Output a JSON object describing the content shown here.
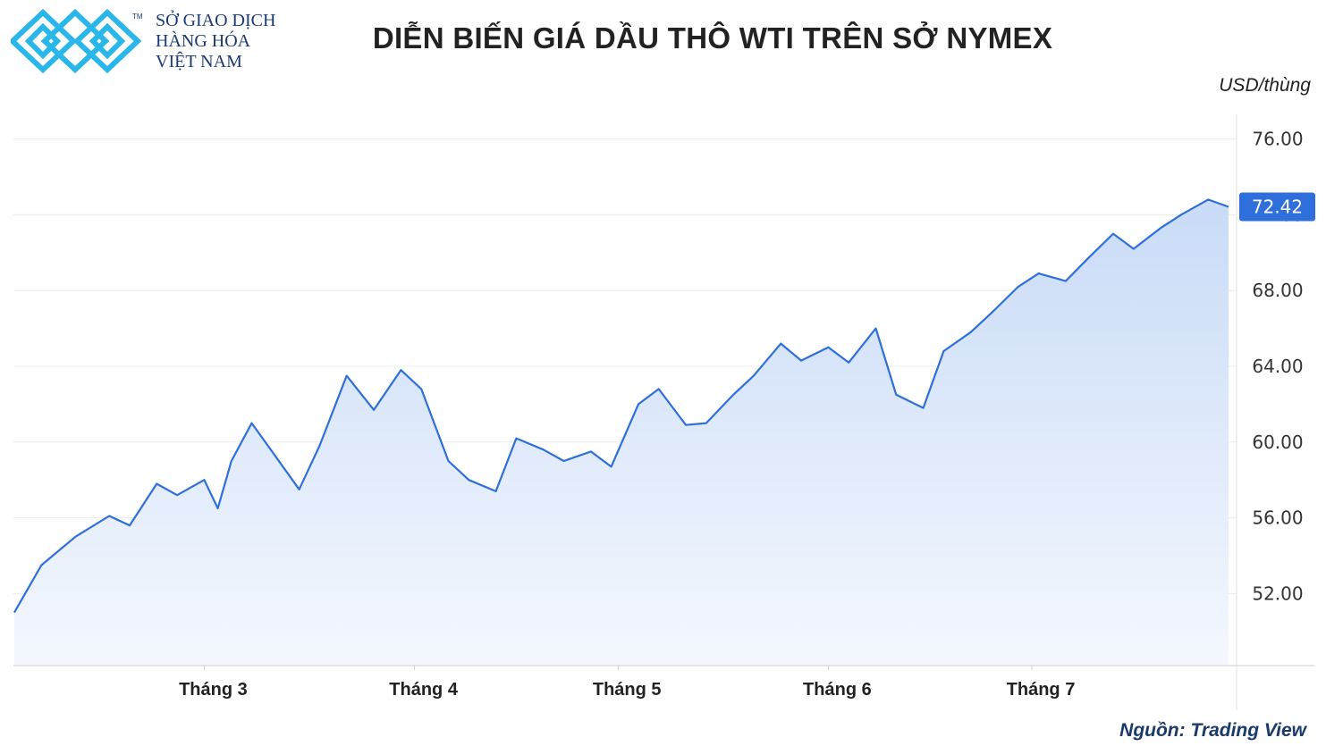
{
  "logo": {
    "line1": "SỞ GIAO DỊCH",
    "line2": "HÀNG HÓA",
    "line3": "VIỆT NAM",
    "tm": "TM",
    "color": "#29b6e8",
    "text_color": "#1a3a73"
  },
  "header": {
    "title": "DIỄN BIẾN GIÁ DẦU THÔ WTI TRÊN SỞ NYMEX",
    "unit": "USD/thùng"
  },
  "footer": {
    "source": "Nguồn: Trading View"
  },
  "colors": {
    "line": "#2f6fdc",
    "fill_top": "#c9dbf7",
    "fill_bottom": "#f4f8fe",
    "grid": "#ececec",
    "last_label_bg": "#2f6fdc"
  },
  "chart_data": {
    "type": "area",
    "x_axis_type": "date",
    "x": [
      "2021-02-01",
      "2021-02-05",
      "2021-02-10",
      "2021-02-15",
      "2021-02-18",
      "2021-02-22",
      "2021-02-25",
      "2021-03-01",
      "2021-03-03",
      "2021-03-05",
      "2021-03-08",
      "2021-03-11",
      "2021-03-15",
      "2021-03-18",
      "2021-03-22",
      "2021-03-26",
      "2021-03-30",
      "2021-04-02",
      "2021-04-06",
      "2021-04-09",
      "2021-04-13",
      "2021-04-16",
      "2021-04-20",
      "2021-04-23",
      "2021-04-27",
      "2021-04-30",
      "2021-05-04",
      "2021-05-07",
      "2021-05-11",
      "2021-05-14",
      "2021-05-18",
      "2021-05-21",
      "2021-05-25",
      "2021-05-28",
      "2021-06-01",
      "2021-06-04",
      "2021-06-08",
      "2021-06-11",
      "2021-06-15",
      "2021-06-18",
      "2021-06-22",
      "2021-06-25",
      "2021-06-29",
      "2021-07-02",
      "2021-07-06",
      "2021-07-09",
      "2021-07-13",
      "2021-07-16",
      "2021-07-20",
      "2021-07-23",
      "2021-07-27",
      "2021-07-30"
    ],
    "series": [
      {
        "values": [
          51.0,
          53.5,
          55.0,
          56.1,
          55.6,
          57.8,
          57.2,
          58.0,
          56.5,
          59.0,
          61.0,
          59.5,
          57.5,
          59.8,
          63.5,
          61.7,
          63.8,
          62.8,
          59.0,
          58.0,
          57.4,
          60.2,
          59.6,
          59.0,
          59.5,
          58.7,
          62.0,
          62.8,
          60.9,
          61.0,
          62.5,
          63.5,
          65.2,
          64.3,
          65.0,
          64.2,
          66.0,
          62.5,
          61.8,
          64.8,
          65.8,
          66.8,
          68.2,
          68.9,
          68.5,
          69.6,
          71.0,
          70.2,
          71.3,
          72.0,
          72.8,
          72.42
        ]
      }
    ],
    "yticks": [
      "76.00",
      "72.00",
      "68.00",
      "64.00",
      "60.00",
      "56.00",
      "52.00"
    ],
    "ylim": [
      48.2,
      77.3
    ],
    "xticks": [
      {
        "label": "Tháng 3",
        "date": "2021-03-01"
      },
      {
        "label": "Tháng 4",
        "date": "2021-04-01"
      },
      {
        "label": "Tháng 5",
        "date": "2021-05-01"
      },
      {
        "label": "Tháng 6",
        "date": "2021-06-01"
      },
      {
        "label": "Tháng 7",
        "date": "2021-07-01"
      }
    ],
    "last_value_label": "72.42",
    "grid": true,
    "legend": false
  }
}
